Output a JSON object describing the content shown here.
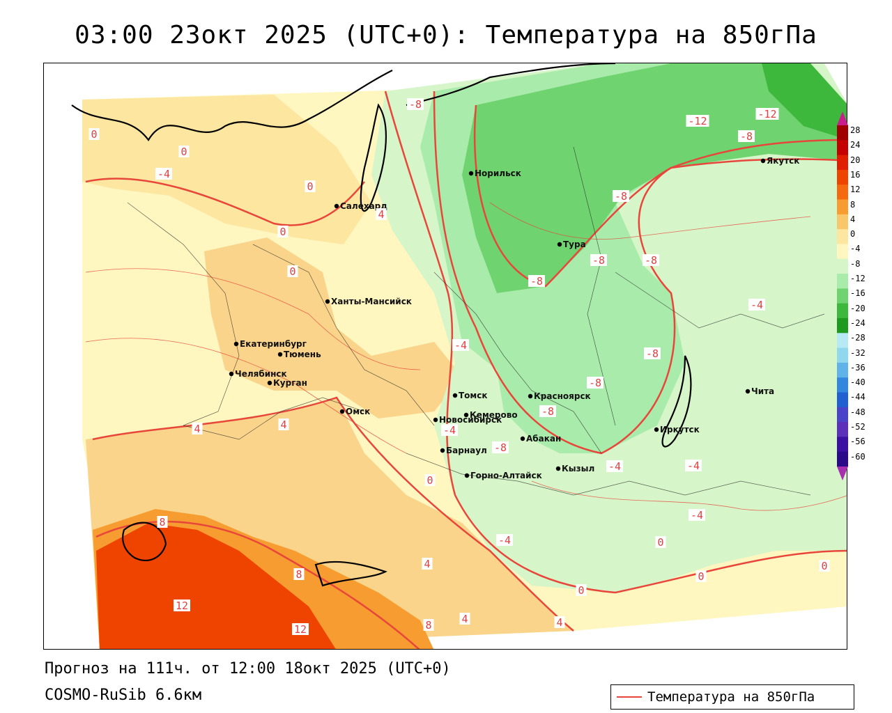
{
  "title": "03:00 23окт 2025 (UTC+0): Температура на 850гПа",
  "footer": {
    "forecast": "Прогноз на 111ч. от 12:00 18окт 2025 (UTC+0)",
    "model": "COSMO-RuSib 6.6км"
  },
  "legend": {
    "label": "Температура на 850гПа",
    "line_color": "#e8463a"
  },
  "colorbar": {
    "levels": [
      "28",
      "24",
      "20",
      "16",
      "12",
      "8",
      "4",
      "0",
      "-4",
      "-8",
      "-12",
      "-16",
      "-20",
      "-24",
      "-28",
      "-32",
      "-36",
      "-40",
      "-44",
      "-48",
      "-52",
      "-56",
      "-60"
    ],
    "colors": [
      "#a00000",
      "#c40000",
      "#e01e00",
      "#ee4400",
      "#f56a10",
      "#f79c30",
      "#fac66a",
      "#fde6a0",
      "#fff6c0",
      "#d6f5c8",
      "#a9ebaa",
      "#6fd36f",
      "#3db83d",
      "#1e9a1e",
      "#b7e9f5",
      "#8fd8ee",
      "#5fb3e8",
      "#3388dd",
      "#2060d0",
      "#4b44c8",
      "#5c30b8",
      "#3c10a0",
      "#2a0a88"
    ],
    "top_color": "#c81e8c",
    "bottom_color": "#a830b0"
  },
  "cities": [
    {
      "name": "Салехард"
    },
    {
      "name": "Норильск"
    },
    {
      "name": "Якутск"
    },
    {
      "name": "Тура"
    },
    {
      "name": "Ханты-Мансийск"
    },
    {
      "name": "Екатеринбург"
    },
    {
      "name": "Тюмень"
    },
    {
      "name": "Челябинск"
    },
    {
      "name": "Курган"
    },
    {
      "name": "Омск"
    },
    {
      "name": "Новосибирск"
    },
    {
      "name": "Томск"
    },
    {
      "name": "Кемерово"
    },
    {
      "name": "Красноярск"
    },
    {
      "name": "Барнаул"
    },
    {
      "name": "Абакан"
    },
    {
      "name": "Горно-Алтайск"
    },
    {
      "name": "Кызыл"
    },
    {
      "name": "Иркутск"
    },
    {
      "name": "Чита"
    }
  ],
  "isotherm_labels": [
    {
      "text": "0"
    },
    {
      "text": "0"
    },
    {
      "text": "-4"
    },
    {
      "text": "0"
    },
    {
      "text": "0"
    },
    {
      "text": "0"
    },
    {
      "text": "-8"
    },
    {
      "text": "4"
    },
    {
      "text": "-12"
    },
    {
      "text": "-12"
    },
    {
      "text": "-8"
    },
    {
      "text": "-8"
    },
    {
      "text": "-8"
    },
    {
      "text": "-8"
    },
    {
      "text": "-8"
    },
    {
      "text": "-4"
    },
    {
      "text": "-4"
    },
    {
      "text": "-8"
    },
    {
      "text": "-8"
    },
    {
      "text": "-8"
    },
    {
      "text": "-4"
    },
    {
      "text": "-8"
    },
    {
      "text": "4"
    },
    {
      "text": "4"
    },
    {
      "text": "0"
    },
    {
      "text": "-4"
    },
    {
      "text": "-4"
    },
    {
      "text": "-4"
    },
    {
      "text": "-4"
    },
    {
      "text": "8"
    },
    {
      "text": "8"
    },
    {
      "text": "12"
    },
    {
      "text": "12"
    },
    {
      "text": "4"
    },
    {
      "text": "0"
    },
    {
      "text": "0"
    },
    {
      "text": "0"
    },
    {
      "text": "0"
    },
    {
      "text": "8"
    },
    {
      "text": "4"
    },
    {
      "text": "4"
    }
  ]
}
